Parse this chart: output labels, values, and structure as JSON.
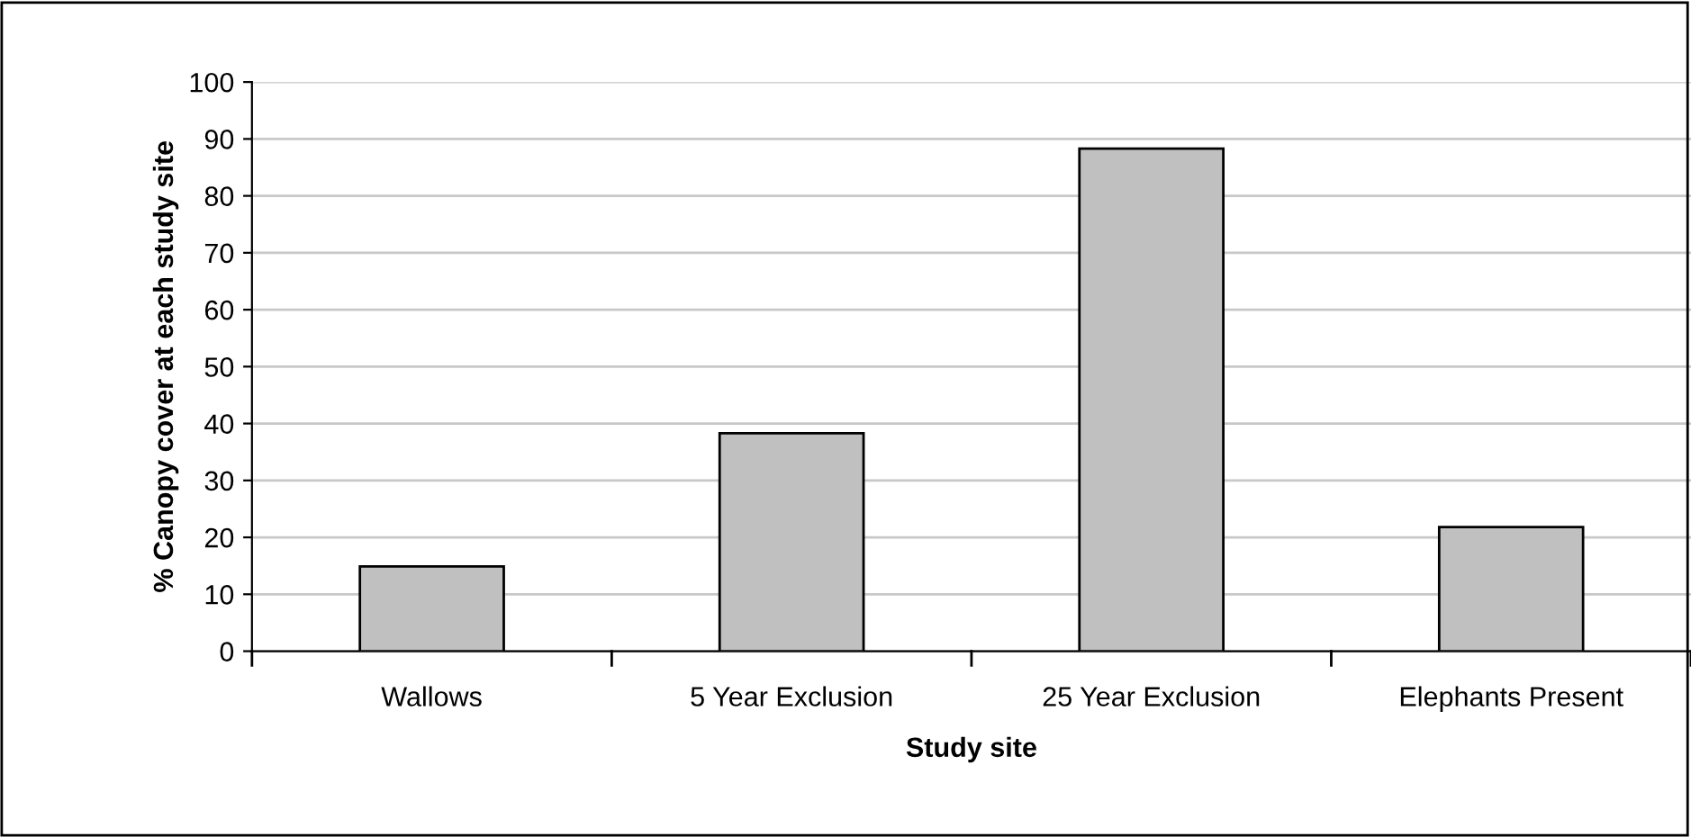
{
  "chart_data": {
    "type": "bar",
    "xlabel": "Study site",
    "ylabel": "% Canopy cover at each study site",
    "categories": [
      "Wallows",
      "5 Year Exclusion",
      "25 Year Exclusion",
      "Elephants Present"
    ],
    "values": [
      14.9,
      38.3,
      88.3,
      21.8
    ],
    "color": "#c0c0c0",
    "ylim": [
      0,
      100
    ],
    "yticks": [
      0,
      10,
      20,
      30,
      40,
      50,
      60,
      70,
      80,
      90,
      100
    ],
    "grid": "y"
  }
}
